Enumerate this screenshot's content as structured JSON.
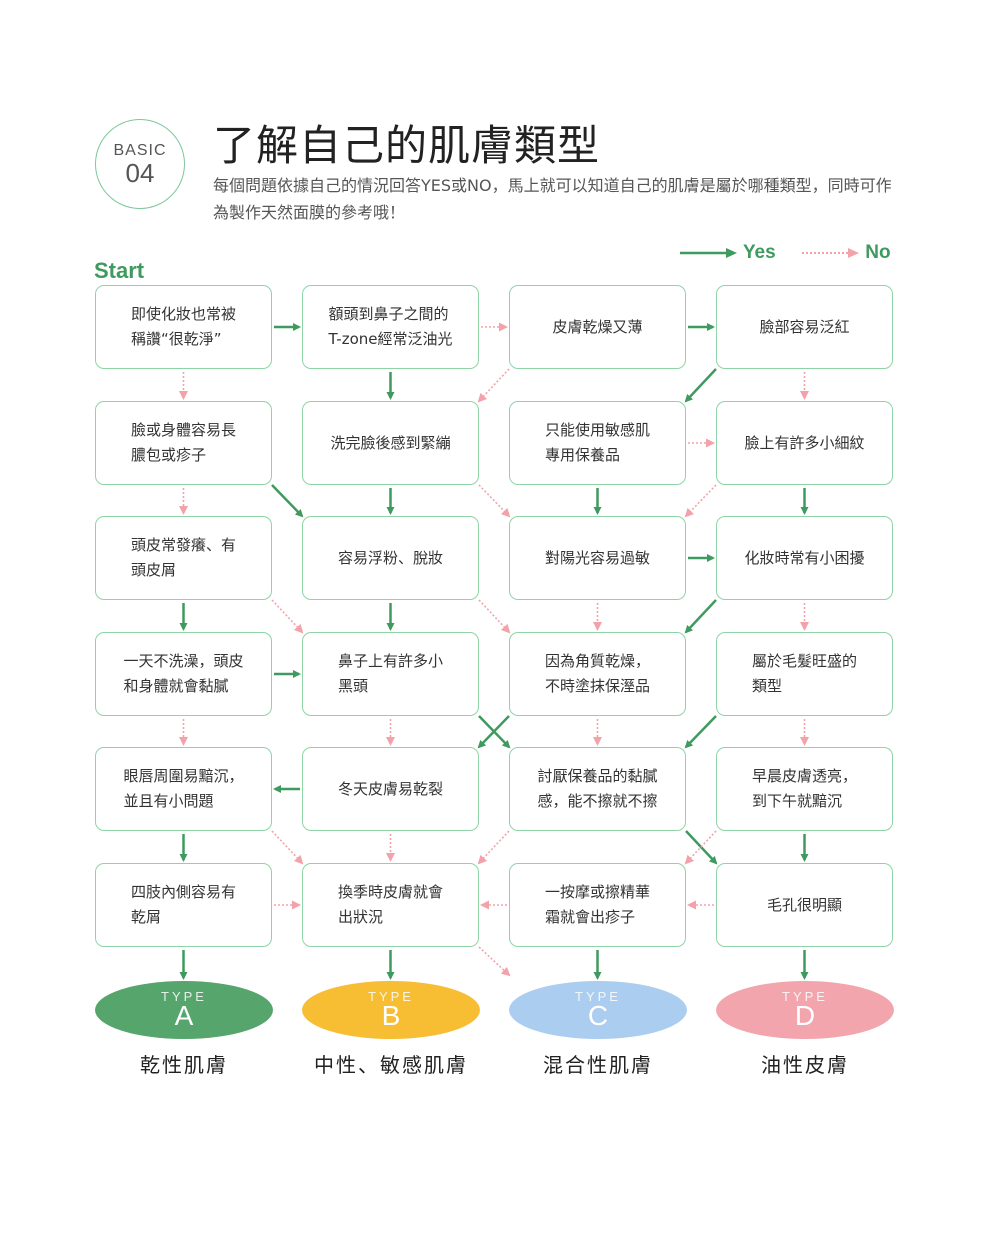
{
  "header": {
    "badge_top": "BASIC",
    "badge_num": "04",
    "title": "了解自己的肌膚類型",
    "subtitle": "每個問題依據自己的情況回答YES或NO，馬上就可以知道自己的肌膚是屬於哪種類型，同時可作為製作天然面膜的參考哦！"
  },
  "legend": {
    "yes": "Yes",
    "no": "No"
  },
  "start_label": "Start",
  "colors": {
    "yes": "#3f9a5f",
    "no": "#f3a2aa",
    "box_border": "#8fd4a6"
  },
  "nodes": [
    "即使化妝也常被\n稱讚“很乾淨”",
    "額頭到鼻子之間的\nT-zone經常泛油光",
    "皮膚乾燥又薄",
    "臉部容易泛紅",
    "臉或身體容易長\n膿包或疹子",
    "洗完臉後感到緊繃",
    "只能使用敏感肌\n專用保養品",
    "臉上有許多小細紋",
    "頭皮常發癢、有\n頭皮屑",
    "容易浮粉、脫妝",
    "對陽光容易過敏",
    "化妝時常有小困擾",
    "一天不洗澡，頭皮\n和身體就會黏膩",
    "鼻子上有許多小\n黑頭",
    "因為角質乾燥，\n不時塗抹保溼品",
    "屬於毛髮旺盛的\n類型",
    "眼唇周圍易黯沉，\n並且有小問題",
    "冬天皮膚易乾裂",
    "討厭保養品的黏膩\n感，能不擦就不擦",
    "早晨皮膚透亮，\n到下午就黯沉",
    "四肢內側容易有\n乾屑",
    "換季時皮膚就會\n出狀況",
    "一按摩或擦精華\n霜就會出疹子",
    "毛孔很明顯"
  ],
  "results": [
    {
      "type_label": "TYPE",
      "letter": "A",
      "name": "乾性肌膚",
      "color": "#55a56c"
    },
    {
      "type_label": "TYPE",
      "letter": "B",
      "name": "中性、敏感肌膚",
      "color": "#f7bd33"
    },
    {
      "type_label": "TYPE",
      "letter": "C",
      "name": "混合性肌膚",
      "color": "#abcdef"
    },
    {
      "type_label": "TYPE",
      "letter": "D",
      "name": "油性皮膚",
      "color": "#f2a5ad"
    }
  ],
  "edges": {
    "yes": [
      [
        0,
        1
      ],
      [
        2,
        3
      ],
      [
        1,
        5
      ],
      [
        3,
        6
      ],
      [
        4,
        9
      ],
      [
        5,
        9
      ],
      [
        6,
        10
      ],
      [
        7,
        11
      ],
      [
        10,
        11
      ],
      [
        8,
        12
      ],
      [
        9,
        13
      ],
      [
        11,
        14
      ],
      [
        12,
        13
      ],
      [
        13,
        18
      ],
      [
        14,
        17
      ],
      [
        15,
        18
      ],
      [
        17,
        16
      ],
      [
        16,
        20
      ],
      [
        19,
        23
      ],
      [
        18,
        23
      ],
      [
        20,
        24
      ],
      [
        21,
        25
      ],
      [
        22,
        26
      ],
      [
        23,
        27
      ]
    ],
    "no": [
      [
        1,
        2
      ],
      [
        0,
        4
      ],
      [
        2,
        5
      ],
      [
        3,
        7
      ],
      [
        6,
        7
      ],
      [
        4,
        8
      ],
      [
        5,
        10
      ],
      [
        7,
        10
      ],
      [
        8,
        13
      ],
      [
        9,
        14
      ],
      [
        10,
        14
      ],
      [
        11,
        15
      ],
      [
        12,
        16
      ],
      [
        13,
        17
      ],
      [
        14,
        18
      ],
      [
        15,
        19
      ],
      [
        16,
        21
      ],
      [
        17,
        21
      ],
      [
        18,
        21
      ],
      [
        19,
        22
      ],
      [
        20,
        21
      ],
      [
        22,
        21
      ],
      [
        23,
        22
      ],
      [
        21,
        26
      ]
    ]
  }
}
